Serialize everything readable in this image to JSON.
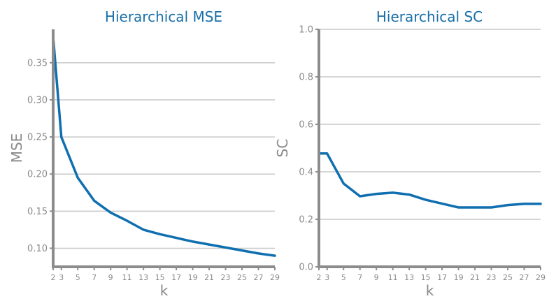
{
  "chart_data": [
    {
      "type": "line",
      "title": "Hierarchical MSE",
      "xlabel": "k",
      "ylabel": "MSE",
      "x": [
        2,
        3,
        5,
        7,
        9,
        11,
        13,
        15,
        17,
        19,
        21,
        23,
        25,
        27,
        29
      ],
      "x_ticks": [
        "2",
        "3",
        "5",
        "7",
        "9",
        "11",
        "13",
        "15",
        "17",
        "19",
        "21",
        "23",
        "25",
        "27",
        "29"
      ],
      "y_ticks": [
        "0.10",
        "0.15",
        "0.20",
        "0.25",
        "0.30",
        "0.35"
      ],
      "y_tick_values": [
        0.1,
        0.15,
        0.2,
        0.25,
        0.3,
        0.35
      ],
      "ylim": [
        0.075,
        0.395
      ],
      "xlim": [
        2,
        29
      ],
      "grid": true,
      "series": [
        {
          "values": [
            0.385,
            0.25,
            0.195,
            0.164,
            0.148,
            0.137,
            0.125,
            0.119,
            0.114,
            0.109,
            0.105,
            0.101,
            0.097,
            0.093,
            0.09
          ]
        }
      ]
    },
    {
      "type": "line",
      "title": "Hierarchical SC",
      "xlabel": "k",
      "ylabel": "SC",
      "x": [
        2,
        3,
        5,
        7,
        9,
        11,
        13,
        15,
        17,
        19,
        21,
        23,
        25,
        27,
        29
      ],
      "x_ticks": [
        "2",
        "3",
        "5",
        "7",
        "9",
        "11",
        "13",
        "15",
        "17",
        "19",
        "21",
        "23",
        "25",
        "27",
        "29"
      ],
      "y_ticks": [
        "0.0",
        "0.2",
        "0.4",
        "0.6",
        "0.8",
        "1.0"
      ],
      "y_tick_values": [
        0.0,
        0.2,
        0.4,
        0.6,
        0.8,
        1.0
      ],
      "ylim": [
        0.0,
        1.0
      ],
      "xlim": [
        2,
        29
      ],
      "grid": true,
      "series": [
        {
          "values": [
            0.477,
            0.477,
            0.351,
            0.297,
            0.307,
            0.312,
            0.304,
            0.282,
            0.266,
            0.25,
            0.25,
            0.25,
            0.26,
            0.265,
            0.265
          ]
        }
      ]
    }
  ],
  "colors": {
    "line": "#0f6fb0",
    "title": "#1a6fa8",
    "axis": "#8c8c8c",
    "grid": "#c8c8c8",
    "text": "#8a8a8a"
  }
}
